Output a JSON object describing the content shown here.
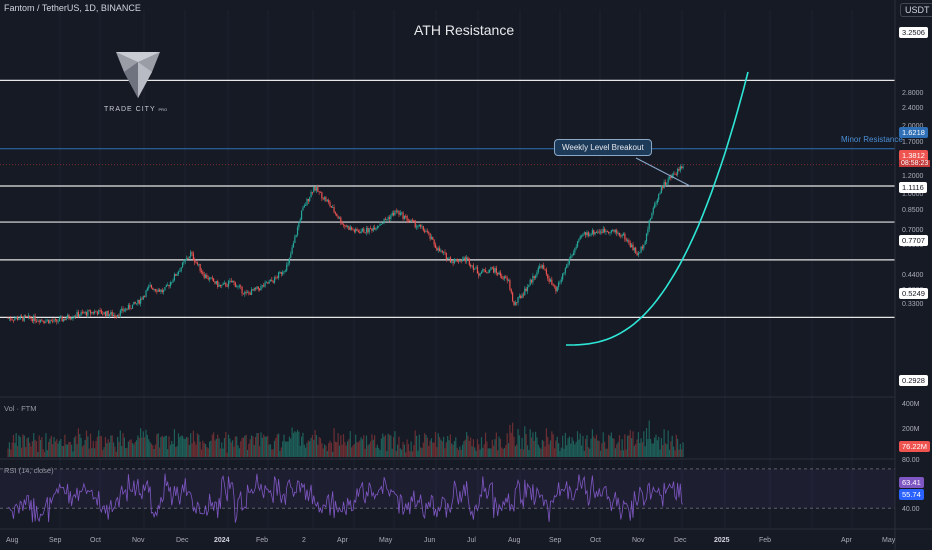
{
  "header": {
    "symbol_line": "Fantom / TetherUS, 1D, BINANCE",
    "currency": "USDT"
  },
  "logo": {
    "name": "TRADE CITY",
    "suffix": "PRO"
  },
  "annotations": {
    "ath": "ATH Resistance",
    "minor": "Minor Resistance",
    "callout": "Weekly Level Breakout"
  },
  "panes": {
    "volume_label": "Vol · FTM",
    "rsi_label": "RSI (14, close)"
  },
  "price_axis": [
    "3.2506",
    "2.8000",
    "2.4000",
    "2.0000",
    "1.7000",
    "1.6218",
    "1.3812",
    "1.2000",
    "1.1116",
    "1.0000",
    "0.8500",
    "0.7707",
    "0.7000",
    "0.6000",
    "0.5249",
    "0.4400",
    "0.3800",
    "0.3300",
    "0.2928"
  ],
  "price_tags": {
    "ath": "3.2506",
    "minor": "1.6218",
    "last": "1.3812",
    "timer": "08:58:23",
    "level_1": "1.1116",
    "level_2": "0.7707",
    "level_3": "0.5249",
    "level_4": "0.2928"
  },
  "volume_axis": {
    "top": "400M",
    "mid": "200M",
    "last": "76.22M"
  },
  "rsi_axis": {
    "top": "80.00",
    "val1": "63.41",
    "val2": "55.74",
    "bottom": "40.00"
  },
  "time_axis": [
    "Aug",
    "Sep",
    "Oct",
    "Nov",
    "Dec",
    "2024",
    "Feb",
    "2",
    "Apr",
    "May",
    "Jun",
    "Jul",
    "Aug",
    "Sep",
    "Oct",
    "Nov",
    "Dec",
    "2025",
    "Feb",
    "Apr",
    "May"
  ],
  "colors": {
    "up": "#26a69a",
    "down": "#ef5350",
    "curve": "#2ee6d6",
    "minor_line": "#2f6fb6",
    "rsi": "#7e57c2",
    "background": "#161a25"
  },
  "chart_data": {
    "type": "candlestick",
    "title": "Fantom / TetherUS, 1D, BINANCE",
    "x": [
      "2023-08-01",
      "2023-08-15",
      "2023-09-01",
      "2023-09-15",
      "2023-10-01",
      "2023-10-15",
      "2023-11-01",
      "2023-11-10",
      "2023-11-20",
      "2023-12-01",
      "2023-12-10",
      "2023-12-20",
      "2024-01-01",
      "2024-01-10",
      "2024-01-20",
      "2024-02-01",
      "2024-02-10",
      "2024-02-20",
      "2024-03-01",
      "2024-03-10",
      "2024-03-20",
      "2024-04-01",
      "2024-04-10",
      "2024-04-20",
      "2024-05-01",
      "2024-05-10",
      "2024-05-20",
      "2024-06-01",
      "2024-06-10",
      "2024-06-20",
      "2024-07-01",
      "2024-07-10",
      "2024-07-20",
      "2024-08-01",
      "2024-08-05",
      "2024-08-15",
      "2024-08-25",
      "2024-09-05",
      "2024-09-15",
      "2024-09-25",
      "2024-10-05",
      "2024-10-15",
      "2024-10-25",
      "2024-11-05",
      "2024-11-10",
      "2024-11-15",
      "2024-11-22",
      "2024-12-01",
      "2024-12-08"
    ],
    "close": [
      0.29,
      0.29,
      0.28,
      0.3,
      0.31,
      0.3,
      0.34,
      0.4,
      0.38,
      0.47,
      0.56,
      0.45,
      0.4,
      0.42,
      0.37,
      0.4,
      0.43,
      0.5,
      0.85,
      1.1,
      0.95,
      0.75,
      0.7,
      0.71,
      0.78,
      0.86,
      0.78,
      0.7,
      0.58,
      0.52,
      0.53,
      0.46,
      0.48,
      0.42,
      0.33,
      0.4,
      0.5,
      0.38,
      0.53,
      0.68,
      0.7,
      0.71,
      0.67,
      0.55,
      0.65,
      0.85,
      1.1,
      1.25,
      1.3812
    ],
    "volume_label": "Vol · FTM",
    "levels": [
      3.2506,
      1.6218,
      1.1116,
      0.7707,
      0.5249,
      0.2928
    ],
    "y_scale": "log",
    "ylim": [
      0.27,
      3.5
    ],
    "last_price": 1.3812,
    "last_volume": "76.22M",
    "rsi": {
      "name": "RSI (14, close)",
      "last": 63.41,
      "ma": 55.74,
      "bands": [
        40,
        80
      ]
    },
    "grid": true
  }
}
